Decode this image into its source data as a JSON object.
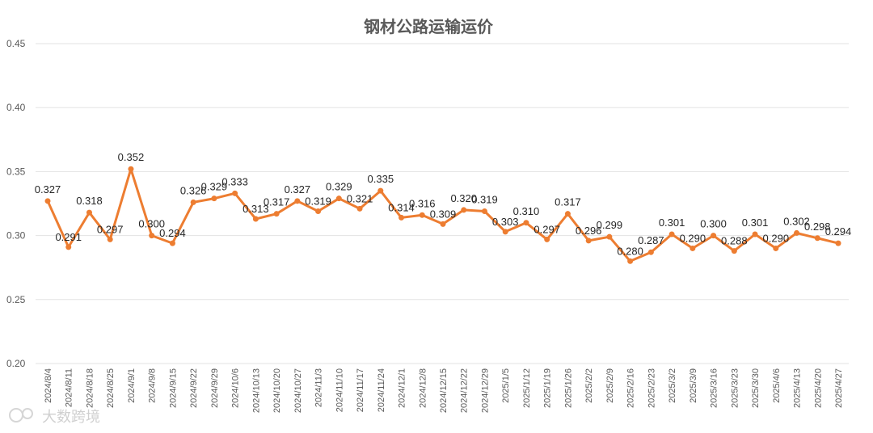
{
  "chart_data": {
    "type": "line",
    "title": "钢材公路运输运价",
    "xlabel": "",
    "ylabel": "",
    "ylim": [
      0.2,
      0.45
    ],
    "y_ticks": [
      "0.20",
      "0.25",
      "0.30",
      "0.35",
      "0.40",
      "0.45"
    ],
    "grid": "horizontal",
    "legend": "none",
    "categories": [
      "2024/8/4",
      "2024/8/11",
      "2024/8/18",
      "2024/8/25",
      "2024/9/1",
      "2024/9/8",
      "2024/9/15",
      "2024/9/22",
      "2024/9/29",
      "2024/10/6",
      "2024/10/13",
      "2024/10/20",
      "2024/10/27",
      "2024/11/3",
      "2024/11/10",
      "2024/11/17",
      "2024/11/24",
      "2024/12/1",
      "2024/12/8",
      "2024/12/15",
      "2024/12/22",
      "2024/12/29",
      "2025/1/5",
      "2025/1/12",
      "2025/1/19",
      "2025/1/26",
      "2025/2/2",
      "2025/2/9",
      "2025/2/16",
      "2025/2/23",
      "2025/3/2",
      "2025/3/9",
      "2025/3/16",
      "2025/3/23",
      "2025/3/30",
      "2025/4/6",
      "2025/4/13",
      "2025/4/20",
      "2025/4/27"
    ],
    "series": [
      {
        "values": [
          0.327,
          0.291,
          0.318,
          0.297,
          0.352,
          0.3,
          0.294,
          0.326,
          0.329,
          0.333,
          0.313,
          0.317,
          0.327,
          0.319,
          0.329,
          0.321,
          0.335,
          0.314,
          0.316,
          0.309,
          0.32,
          0.319,
          0.303,
          0.31,
          0.297,
          0.317,
          0.296,
          0.299,
          0.28,
          0.287,
          0.301,
          0.29,
          0.3,
          0.288,
          0.301,
          0.29,
          0.302,
          0.298,
          0.294
        ],
        "labels": [
          "0.327",
          "0.291",
          "0.318",
          "0.297",
          "0.352",
          "0.300",
          "0.294",
          "0.326",
          "0.329",
          "0.333",
          "0.313",
          "0.317",
          "0.327",
          "0.319",
          "0.329",
          "0.321",
          "0.335",
          "0.314",
          "0.316",
          "0.309",
          "0.320",
          "0.319",
          "0.303",
          "0.310",
          "0.297",
          "0.317",
          "0.296",
          "0.299",
          "0.280",
          "0.287",
          "0.301",
          "0.290",
          "0.300",
          "0.288",
          "0.301",
          "0.290",
          "0.302",
          "0.298",
          "0.294"
        ]
      }
    ]
  },
  "colors": {
    "line": "#ed7d31",
    "grid": "#e3e3e3",
    "text": "#595959"
  },
  "watermark": {
    "text": "大数跨境",
    "icon": "logo-icon"
  }
}
